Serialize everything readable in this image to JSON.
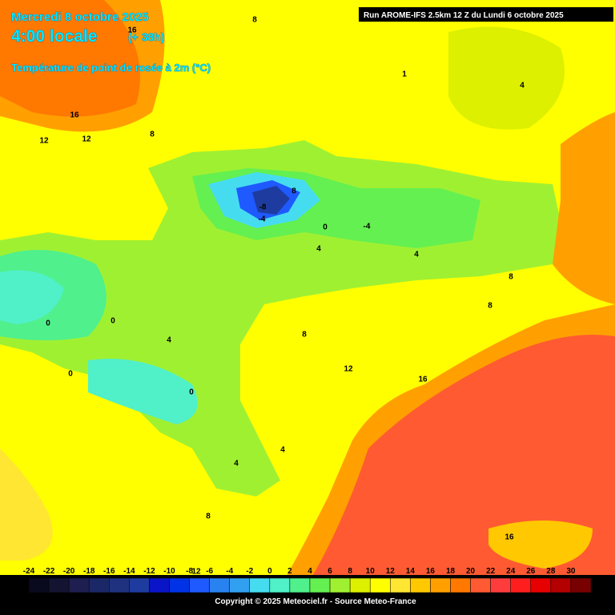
{
  "header": {
    "date": "Mercredi 8 octobre 2025",
    "time": "4:00 locale",
    "lead": "(+ 38h)",
    "field": "Température de point de rosée à 2m (°C)"
  },
  "run": "Run AROME-IFS 2.5km 12 Z du Lundi 6 octobre 2025",
  "contour_labels": [
    "8",
    "16",
    "16",
    "12",
    "12",
    "8",
    "4",
    "1",
    "8",
    "-8",
    "-4",
    "0",
    "-4",
    "4",
    "4",
    "8",
    "8",
    "0",
    "0",
    "4",
    "8",
    "12",
    "16",
    "0",
    "0",
    "4",
    "4",
    "8",
    "12",
    "16"
  ],
  "colorbar": {
    "ticks": [
      -24,
      -22,
      -20,
      -18,
      -16,
      -14,
      -12,
      -10,
      -8,
      -6,
      -4,
      -2,
      0,
      2,
      4,
      6,
      8,
      10,
      12,
      14,
      16,
      18,
      20,
      22,
      24,
      26,
      28,
      30
    ],
    "colors": [
      "#0a0a1e",
      "#141432",
      "#1e1e50",
      "#1a2868",
      "#1e3280",
      "#1e3ca0",
      "#0a14c8",
      "#0032e6",
      "#1e5aff",
      "#2882f0",
      "#32a0f0",
      "#46dcf0",
      "#50f0c8",
      "#50f08c",
      "#64f050",
      "#a0f032",
      "#dcf000",
      "#ffff00",
      "#ffe632",
      "#ffc800",
      "#ffa000",
      "#ff7800",
      "#ff5a32",
      "#ff3c3c",
      "#ff1e1e",
      "#e60000",
      "#b40000",
      "#780000"
    ]
  },
  "copyright": "Copyright © 2025 Meteociel.fr - Source Meteo-France"
}
